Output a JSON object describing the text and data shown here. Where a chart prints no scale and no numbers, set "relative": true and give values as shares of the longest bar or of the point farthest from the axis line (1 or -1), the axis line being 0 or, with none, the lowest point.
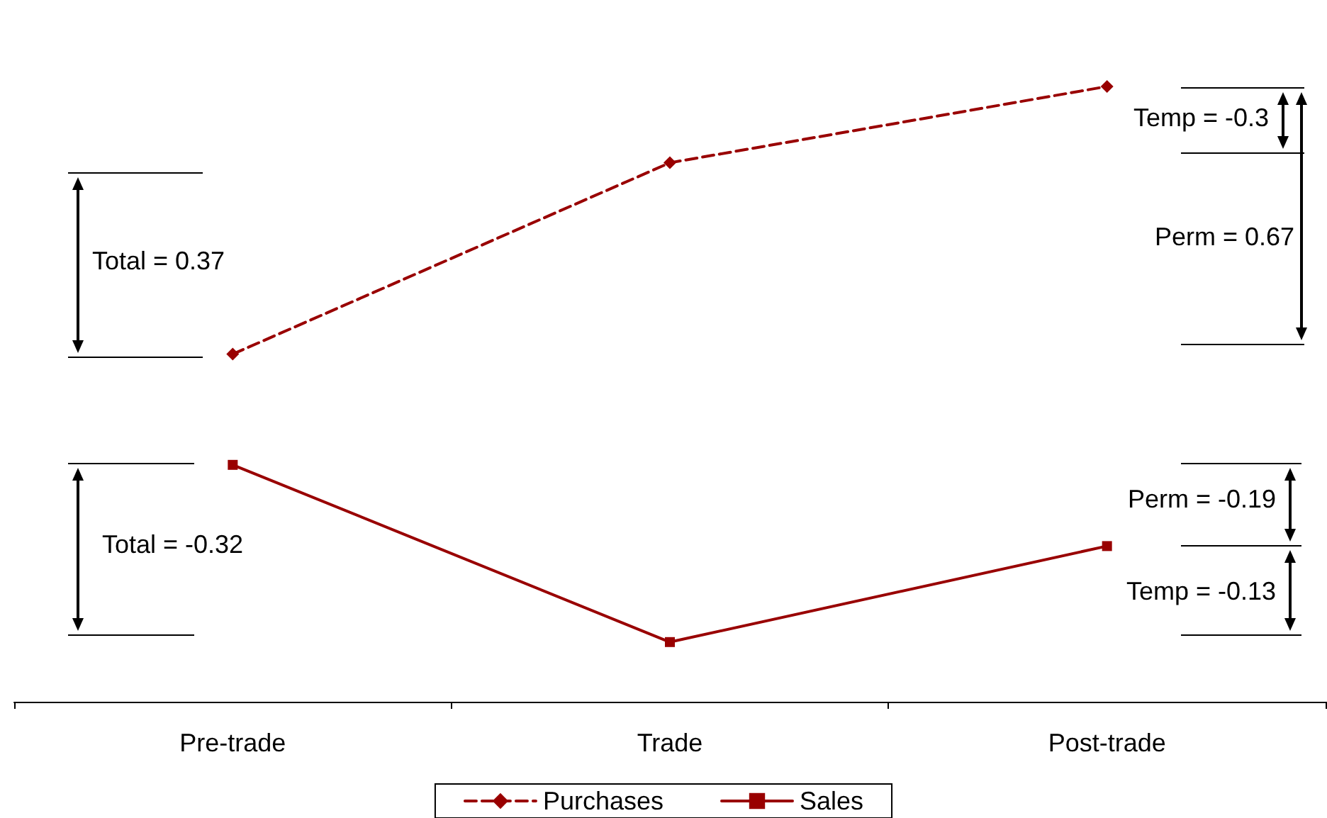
{
  "chart_data": {
    "type": "line",
    "relative": true,
    "categories": [
      "Pre-trade",
      "Trade",
      "Post-trade"
    ],
    "series": [
      {
        "name": "Purchases",
        "color": "#990000",
        "values": [
          0.565,
          0.876,
          1.0
        ],
        "marker": "diamond",
        "line_style": "dashed"
      },
      {
        "name": "Sales",
        "color": "#990000",
        "values": [
          0.385,
          0.097,
          0.253
        ],
        "marker": "square",
        "line_style": "solid"
      }
    ],
    "legend": "bottom",
    "grid": false,
    "annotations": [
      "Total = 0.37",
      "Total = -0.32",
      "Temp = -0.3",
      "Perm = 0.67",
      "Perm = -0.19",
      "Temp = -0.13"
    ]
  }
}
